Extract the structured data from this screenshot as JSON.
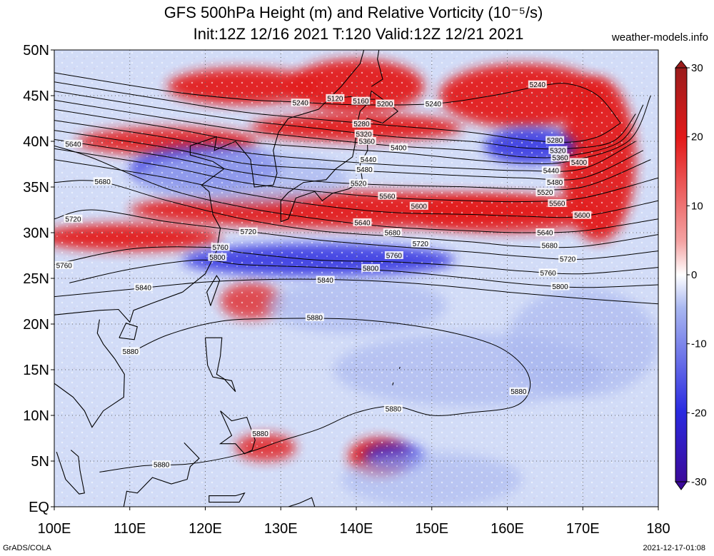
{
  "title": {
    "line1": "GFS 500hPa Height (m) and Relative Vorticity (10⁻⁵/s)",
    "line2": "Init:12Z 12/16 2021 T:120 Valid:12Z 12/21 2021"
  },
  "credit": "weather-models.info",
  "footer": {
    "left": "GrADS/COLA",
    "right": "2021-12-17-01:08"
  },
  "map": {
    "lon_range": [
      100,
      180
    ],
    "lat_range": [
      0,
      50
    ],
    "lon_ticks": [
      {
        "value": 100,
        "label": "100E"
      },
      {
        "value": 110,
        "label": "110E"
      },
      {
        "value": 120,
        "label": "120E"
      },
      {
        "value": 130,
        "label": "130E"
      },
      {
        "value": 140,
        "label": "140E"
      },
      {
        "value": 150,
        "label": "150E"
      },
      {
        "value": 160,
        "label": "160E"
      },
      {
        "value": 170,
        "label": "170E"
      },
      {
        "value": 180,
        "label": "180"
      }
    ],
    "lat_ticks": [
      {
        "value": 0,
        "label": "EQ"
      },
      {
        "value": 5,
        "label": "5N"
      },
      {
        "value": 10,
        "label": "10N"
      },
      {
        "value": 15,
        "label": "15N"
      },
      {
        "value": 20,
        "label": "20N"
      },
      {
        "value": 25,
        "label": "25N"
      },
      {
        "value": 30,
        "label": "30N"
      },
      {
        "value": 35,
        "label": "35N"
      },
      {
        "value": 40,
        "label": "40N"
      },
      {
        "value": 45,
        "label": "45N"
      },
      {
        "value": 50,
        "label": "50N"
      }
    ],
    "gridlines": "dotted"
  },
  "colorbar": {
    "range": [
      -30,
      30
    ],
    "ticks": [
      {
        "value": 30,
        "label": "30"
      },
      {
        "value": 20,
        "label": "20"
      },
      {
        "value": 10,
        "label": "10"
      },
      {
        "value": 0,
        "label": "0"
      },
      {
        "value": -10,
        "label": "-10"
      },
      {
        "value": -20,
        "label": "-20"
      },
      {
        "value": -30,
        "label": "-30"
      }
    ],
    "colors": {
      "max": "#9b1c1c",
      "high": "#e31a1a",
      "mid_high": "#f4a3a3",
      "zero": "#ffffff",
      "mid_low": "#a9b7f0",
      "low": "#2a2ae0",
      "min": "#3b0a9a"
    }
  },
  "contours": [
    {
      "value": 5120,
      "label": "5120",
      "points": [
        [
          138,
          44.8
        ],
        [
          139.5,
          44.9
        ]
      ]
    },
    {
      "value": 5160,
      "label": "5160",
      "points": [
        [
          141,
          44.6
        ],
        [
          142.5,
          44.6
        ]
      ]
    },
    {
      "value": 5200,
      "label": "5200",
      "points": [
        [
          143,
          44.3
        ],
        [
          144.5,
          44.2
        ]
      ]
    },
    {
      "value": 5240,
      "label": "5240",
      "points": [
        [
          100,
          47.5
        ],
        [
          115,
          45.5
        ],
        [
          125,
          44.6
        ],
        [
          132,
          44.3
        ],
        [
          140,
          44
        ],
        [
          150,
          44.1
        ],
        [
          158,
          45
        ],
        [
          164,
          46
        ],
        [
          168,
          46.3
        ],
        [
          172,
          45
        ],
        [
          175,
          42
        ]
      ]
    },
    {
      "value": 5280,
      "label": "5280",
      "points": [
        [
          100,
          46.5
        ],
        [
          115,
          44.5
        ],
        [
          125,
          43.2
        ],
        [
          135,
          42.4
        ],
        [
          145,
          41.7
        ],
        [
          155,
          41
        ],
        [
          162,
          40.2
        ],
        [
          168,
          39.9
        ],
        [
          172,
          40.5
        ],
        [
          175,
          42
        ]
      ]
    },
    {
      "value": 5320,
      "label": "5320",
      "points": [
        [
          100,
          45.5
        ],
        [
          115,
          43.5
        ],
        [
          125,
          42.3
        ],
        [
          135,
          41.4
        ],
        [
          145,
          40.5
        ],
        [
          155,
          40
        ],
        [
          162,
          39.3
        ],
        [
          168,
          39.2
        ],
        [
          174,
          40
        ],
        [
          177,
          43
        ]
      ]
    },
    {
      "value": 5360,
      "label": "5360",
      "points": [
        [
          100,
          44.5
        ],
        [
          115,
          42.5
        ],
        [
          125,
          41.2
        ],
        [
          135,
          40.3
        ],
        [
          145,
          39.5
        ],
        [
          155,
          39
        ],
        [
          162,
          38.3
        ],
        [
          168,
          38.4
        ],
        [
          175,
          40
        ],
        [
          178,
          44
        ]
      ]
    },
    {
      "value": 5400,
      "label": "5400",
      "points": [
        [
          100,
          43.5
        ],
        [
          115,
          41.5
        ],
        [
          125,
          40
        ],
        [
          135,
          39.3
        ],
        [
          145,
          38.8
        ],
        [
          155,
          38
        ],
        [
          162,
          37.6
        ],
        [
          168,
          37.8
        ],
        [
          176,
          40
        ],
        [
          179,
          45
        ]
      ]
    },
    {
      "value": 5440,
      "label": "5440",
      "points": [
        [
          100,
          42.3
        ],
        [
          115,
          40.4
        ],
        [
          125,
          38.8
        ],
        [
          135,
          38
        ],
        [
          145,
          37.4
        ],
        [
          155,
          37
        ],
        [
          162,
          36.8
        ],
        [
          170,
          37
        ],
        [
          177,
          40
        ]
      ]
    },
    {
      "value": 5480,
      "label": "5480",
      "points": [
        [
          100,
          41.2
        ],
        [
          115,
          39.3
        ],
        [
          125,
          37.6
        ],
        [
          135,
          37
        ],
        [
          145,
          36.6
        ],
        [
          155,
          36.2
        ],
        [
          162,
          36
        ],
        [
          170,
          36
        ],
        [
          178,
          39
        ]
      ]
    },
    {
      "value": 5520,
      "label": "5520",
      "points": [
        [
          100,
          40.2
        ],
        [
          115,
          38.3
        ],
        [
          125,
          36.6
        ],
        [
          135,
          35.6
        ],
        [
          145,
          35.2
        ],
        [
          155,
          35
        ],
        [
          162,
          34.8
        ],
        [
          170,
          35
        ],
        [
          179,
          38
        ]
      ]
    },
    {
      "value": 5560,
      "label": "5560",
      "points": [
        [
          100,
          39.2
        ],
        [
          115,
          37.2
        ],
        [
          125,
          35.5
        ],
        [
          135,
          34.5
        ],
        [
          145,
          33.8
        ],
        [
          155,
          33.5
        ],
        [
          162,
          33.4
        ],
        [
          170,
          33.8
        ],
        [
          180,
          36
        ]
      ]
    },
    {
      "value": 5600,
      "label": "5600",
      "points": [
        [
          100,
          38
        ],
        [
          115,
          36
        ],
        [
          125,
          34.3
        ],
        [
          135,
          33
        ],
        [
          145,
          32.2
        ],
        [
          155,
          32
        ],
        [
          162,
          31.8
        ],
        [
          170,
          31.8
        ],
        [
          180,
          33.5
        ]
      ]
    },
    {
      "value": 5640,
      "label": "5640",
      "points": [
        [
          100,
          39.5
        ],
        [
          105,
          38.2
        ],
        [
          115,
          34.8
        ],
        [
          125,
          32.8
        ],
        [
          135,
          31.5
        ],
        [
          145,
          30.6
        ],
        [
          155,
          30.2
        ],
        [
          162,
          30
        ],
        [
          170,
          30.2
        ],
        [
          180,
          31.5
        ]
      ]
    },
    {
      "value": 5680,
      "label": "5680",
      "points": [
        [
          100,
          35.5
        ],
        [
          106,
          35.6
        ],
        [
          115,
          33.5
        ],
        [
          125,
          31.5
        ],
        [
          135,
          30.2
        ],
        [
          145,
          29.6
        ],
        [
          155,
          29
        ],
        [
          162,
          28.5
        ],
        [
          170,
          28.5
        ],
        [
          180,
          29.8
        ]
      ]
    },
    {
      "value": 5720,
      "label": "5720",
      "points": [
        [
          100,
          31.5
        ],
        [
          105,
          32.5
        ],
        [
          115,
          31.2
        ],
        [
          125,
          30.2
        ],
        [
          135,
          29.2
        ],
        [
          145,
          28.5
        ],
        [
          155,
          27.9
        ],
        [
          162,
          27.4
        ],
        [
          170,
          27.1
        ],
        [
          180,
          28
        ]
      ]
    },
    {
      "value": 5760,
      "label": "5760",
      "points": [
        [
          100,
          26.5
        ],
        [
          110,
          28.2
        ],
        [
          120,
          28.4
        ],
        [
          125,
          27.8
        ],
        [
          135,
          27
        ],
        [
          145,
          26.8
        ],
        [
          155,
          26.3
        ],
        [
          162,
          25.8
        ],
        [
          170,
          25.5
        ],
        [
          180,
          26.2
        ]
      ]
    },
    {
      "value": 5800,
      "label": "5800",
      "points": [
        [
          102,
          24.5
        ],
        [
          110,
          26
        ],
        [
          119,
          27
        ],
        [
          125,
          26.5
        ],
        [
          135,
          26.2
        ],
        [
          145,
          25.8
        ],
        [
          155,
          25
        ],
        [
          162,
          24.4
        ],
        [
          170,
          24
        ],
        [
          180,
          24.3
        ]
      ]
    },
    {
      "value": 5840,
      "label": "5840",
      "points": [
        [
          100,
          23
        ],
        [
          110,
          23.8
        ],
        [
          120,
          24.6
        ],
        [
          130,
          24.9
        ],
        [
          140,
          24.8
        ],
        [
          150,
          24.3
        ],
        [
          160,
          23.5
        ],
        [
          170,
          22.8
        ],
        [
          180,
          22.2
        ]
      ]
    },
    {
      "value": 5880,
      "label": "5880",
      "points": [
        [
          110,
          16.8
        ],
        [
          115,
          18.8
        ],
        [
          122,
          20.3
        ],
        [
          130,
          20.6
        ],
        [
          140,
          20.5
        ],
        [
          150,
          19.5
        ],
        [
          158,
          17.8
        ],
        [
          162,
          15.5
        ],
        [
          163,
          13
        ],
        [
          161,
          11
        ],
        [
          155,
          10.3
        ],
        [
          150,
          10
        ],
        [
          145,
          11
        ],
        [
          140,
          10.3
        ],
        [
          135,
          8.5
        ],
        [
          130,
          7.2
        ],
        [
          125,
          5.8
        ],
        [
          118,
          4.7
        ],
        [
          112,
          4.5
        ],
        [
          106,
          3.8
        ]
      ]
    }
  ],
  "contour_labels": [
    {
      "text": "5120",
      "lon": 137.2,
      "lat": 44.7
    },
    {
      "text": "5160",
      "lon": 140.6,
      "lat": 44.4
    },
    {
      "text": "5200",
      "lon": 143.8,
      "lat": 44.1
    },
    {
      "text": "5240",
      "lon": 132.6,
      "lat": 44.2
    },
    {
      "text": "5240",
      "lon": 150.2,
      "lat": 44.1
    },
    {
      "text": "5240",
      "lon": 164.0,
      "lat": 46.2
    },
    {
      "text": "5280",
      "lon": 140.7,
      "lat": 41.9
    },
    {
      "text": "5320",
      "lon": 141.0,
      "lat": 40.8
    },
    {
      "text": "5360",
      "lon": 141.4,
      "lat": 40.0
    },
    {
      "text": "5400",
      "lon": 145.6,
      "lat": 39.3
    },
    {
      "text": "5440",
      "lon": 141.6,
      "lat": 38.0
    },
    {
      "text": "5480",
      "lon": 141.1,
      "lat": 36.9
    },
    {
      "text": "5520",
      "lon": 140.3,
      "lat": 35.4
    },
    {
      "text": "5560",
      "lon": 144.1,
      "lat": 34.0
    },
    {
      "text": "5600",
      "lon": 148.3,
      "lat": 32.9
    },
    {
      "text": "5640",
      "lon": 140.8,
      "lat": 31.1
    },
    {
      "text": "5680",
      "lon": 144.8,
      "lat": 30.0
    },
    {
      "text": "5720",
      "lon": 148.5,
      "lat": 28.8
    },
    {
      "text": "5760",
      "lon": 145.0,
      "lat": 27.5
    },
    {
      "text": "5800",
      "lon": 141.9,
      "lat": 26.1
    },
    {
      "text": "5840",
      "lon": 135.9,
      "lat": 24.8
    },
    {
      "text": "5880",
      "lon": 134.5,
      "lat": 20.7
    },
    {
      "text": "5640",
      "lon": 102.5,
      "lat": 39.7
    },
    {
      "text": "5680",
      "lon": 106.4,
      "lat": 35.6
    },
    {
      "text": "5720",
      "lon": 102.5,
      "lat": 31.5
    },
    {
      "text": "5760",
      "lon": 101.3,
      "lat": 26.4
    },
    {
      "text": "5840",
      "lon": 111.8,
      "lat": 24.0
    },
    {
      "text": "5720",
      "lon": 125.7,
      "lat": 30.1
    },
    {
      "text": "5760",
      "lon": 122.0,
      "lat": 28.4
    },
    {
      "text": "5800",
      "lon": 121.6,
      "lat": 27.3
    },
    {
      "text": "5880",
      "lon": 110.1,
      "lat": 17.0
    },
    {
      "text": "5880",
      "lon": 144.9,
      "lat": 10.7
    },
    {
      "text": "5880",
      "lon": 127.3,
      "lat": 8.0
    },
    {
      "text": "5880",
      "lon": 114.2,
      "lat": 4.6
    },
    {
      "text": "5880",
      "lon": 161.5,
      "lat": 12.6
    },
    {
      "text": "5280",
      "lon": 166.3,
      "lat": 40.1
    },
    {
      "text": "5320",
      "lon": 166.7,
      "lat": 39.0
    },
    {
      "text": "5360",
      "lon": 167.0,
      "lat": 38.2
    },
    {
      "text": "5400",
      "lon": 169.5,
      "lat": 37.7
    },
    {
      "text": "5440",
      "lon": 165.8,
      "lat": 36.8
    },
    {
      "text": "5480",
      "lon": 166.3,
      "lat": 35.5
    },
    {
      "text": "5520",
      "lon": 165.0,
      "lat": 34.4
    },
    {
      "text": "5560",
      "lon": 166.6,
      "lat": 33.2
    },
    {
      "text": "5600",
      "lon": 169.9,
      "lat": 31.9
    },
    {
      "text": "5640",
      "lon": 165.0,
      "lat": 30.0
    },
    {
      "text": "5680",
      "lon": 165.6,
      "lat": 28.6
    },
    {
      "text": "5720",
      "lon": 168.0,
      "lat": 27.1
    },
    {
      "text": "5760",
      "lon": 165.4,
      "lat": 25.6
    },
    {
      "text": "5800",
      "lon": 167.0,
      "lat": 24.1
    }
  ],
  "vorticity_features": [
    {
      "type": "positive",
      "value": 25,
      "lon": 140,
      "lat": 46,
      "rlon": 9,
      "rlat": 3
    },
    {
      "type": "positive",
      "value": 22,
      "lon": 125,
      "lat": 46,
      "rlon": 10,
      "rlat": 2
    },
    {
      "type": "positive",
      "value": 25,
      "lon": 162,
      "lat": 45,
      "rlon": 11,
      "rlat": 3.5
    },
    {
      "type": "positive",
      "value": 22,
      "lon": 172,
      "lat": 38,
      "rlon": 5,
      "rlat": 9
    },
    {
      "type": "positive",
      "value": 20,
      "lon": 140,
      "lat": 41.5,
      "rlon": 14,
      "rlat": 1.5
    },
    {
      "type": "positive",
      "value": 18,
      "lon": 115,
      "lat": 40,
      "rlon": 12,
      "rlat": 1.5
    },
    {
      "type": "positive",
      "value": 20,
      "lon": 140,
      "lat": 32.5,
      "rlon": 30,
      "rlat": 2
    },
    {
      "type": "positive",
      "value": 22,
      "lon": 110,
      "lat": 29.5,
      "rlon": 12,
      "rlat": 1.5
    },
    {
      "type": "positive",
      "value": 15,
      "lon": 160,
      "lat": 32,
      "rlon": 12,
      "rlat": 2
    },
    {
      "type": "positive",
      "value": 25,
      "lon": 143,
      "lat": 5.5,
      "rlon": 4,
      "rlat": 2
    },
    {
      "type": "positive",
      "value": 15,
      "lon": 128,
      "lat": 6.5,
      "rlon": 4,
      "rlat": 1.5
    },
    {
      "type": "positive",
      "value": 12,
      "lon": 126,
      "lat": 22.5,
      "rlon": 4,
      "rlat": 2
    },
    {
      "type": "negative",
      "value": -15,
      "lon": 135,
      "lat": 27,
      "rlon": 18,
      "rlat": 1.8
    },
    {
      "type": "negative",
      "value": -12,
      "lon": 120,
      "lat": 37,
      "rlon": 10,
      "rlat": 2.5
    },
    {
      "type": "negative",
      "value": -10,
      "lon": 125,
      "lat": 36,
      "rlon": 14,
      "rlat": 3
    },
    {
      "type": "negative",
      "value": -15,
      "lon": 163,
      "lat": 39.5,
      "rlon": 6,
      "rlat": 2
    },
    {
      "type": "negative",
      "value": -12,
      "lon": 145,
      "lat": 5.5,
      "rlon": 4,
      "rlat": 1.5
    },
    {
      "type": "negative",
      "value": -8,
      "lon": 155,
      "lat": 15,
      "rlon": 18,
      "rlat": 4
    },
    {
      "type": "negative",
      "value": -8,
      "lon": 170,
      "lat": 18,
      "rlon": 10,
      "rlat": 6
    },
    {
      "type": "negative",
      "value": -8,
      "lon": 140,
      "lat": 22,
      "rlon": 12,
      "rlat": 3
    },
    {
      "type": "negative",
      "value": -6,
      "lon": 150,
      "lat": 3,
      "rlon": 12,
      "rlat": 3
    }
  ]
}
